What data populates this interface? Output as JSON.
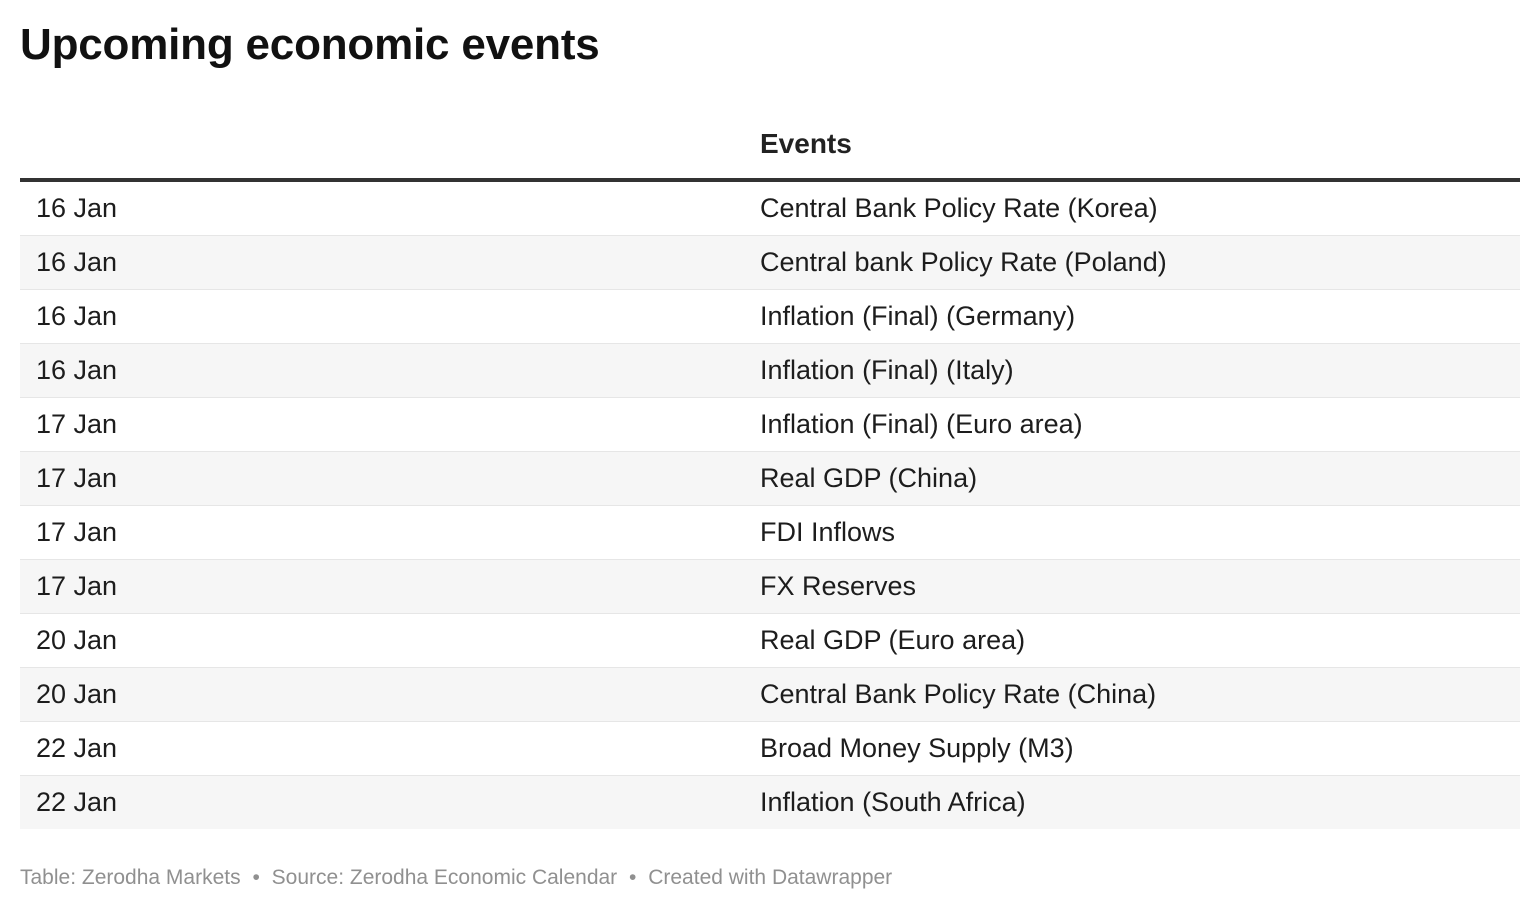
{
  "chart_data": {
    "type": "table",
    "title": "Upcoming economic events",
    "columns": [
      "",
      "Events"
    ],
    "rows": [
      {
        "date": "16 Jan",
        "event": "Central Bank Policy Rate (Korea)"
      },
      {
        "date": "16 Jan",
        "event": "Central bank Policy Rate (Poland)"
      },
      {
        "date": "16 Jan",
        "event": "Inflation (Final) (Germany)"
      },
      {
        "date": "16 Jan",
        "event": "Inflation (Final) (Italy)"
      },
      {
        "date": "17 Jan",
        "event": "Inflation (Final) (Euro area)"
      },
      {
        "date": "17 Jan",
        "event": "Real GDP (China)"
      },
      {
        "date": "17 Jan",
        "event": "FDI Inflows"
      },
      {
        "date": "17 Jan",
        "event": "FX Reserves"
      },
      {
        "date": "20 Jan",
        "event": "Real GDP (Euro area)"
      },
      {
        "date": "20 Jan",
        "event": "Central Bank Policy Rate (China)"
      },
      {
        "date": "22 Jan",
        "event": "Broad Money Supply (M3)"
      },
      {
        "date": "22 Jan",
        "event": "Inflation (South Africa)"
      }
    ]
  },
  "footer": {
    "table_credit": "Table: Zerodha Markets",
    "source": "Source: Zerodha Economic Calendar",
    "created_with": "Created with Datawrapper",
    "separator": "•"
  },
  "colors": {
    "header_rule": "#333333",
    "row_stripe": "#f6f6f6",
    "row_divider": "#e6e6e6",
    "footer_text": "#909090"
  }
}
